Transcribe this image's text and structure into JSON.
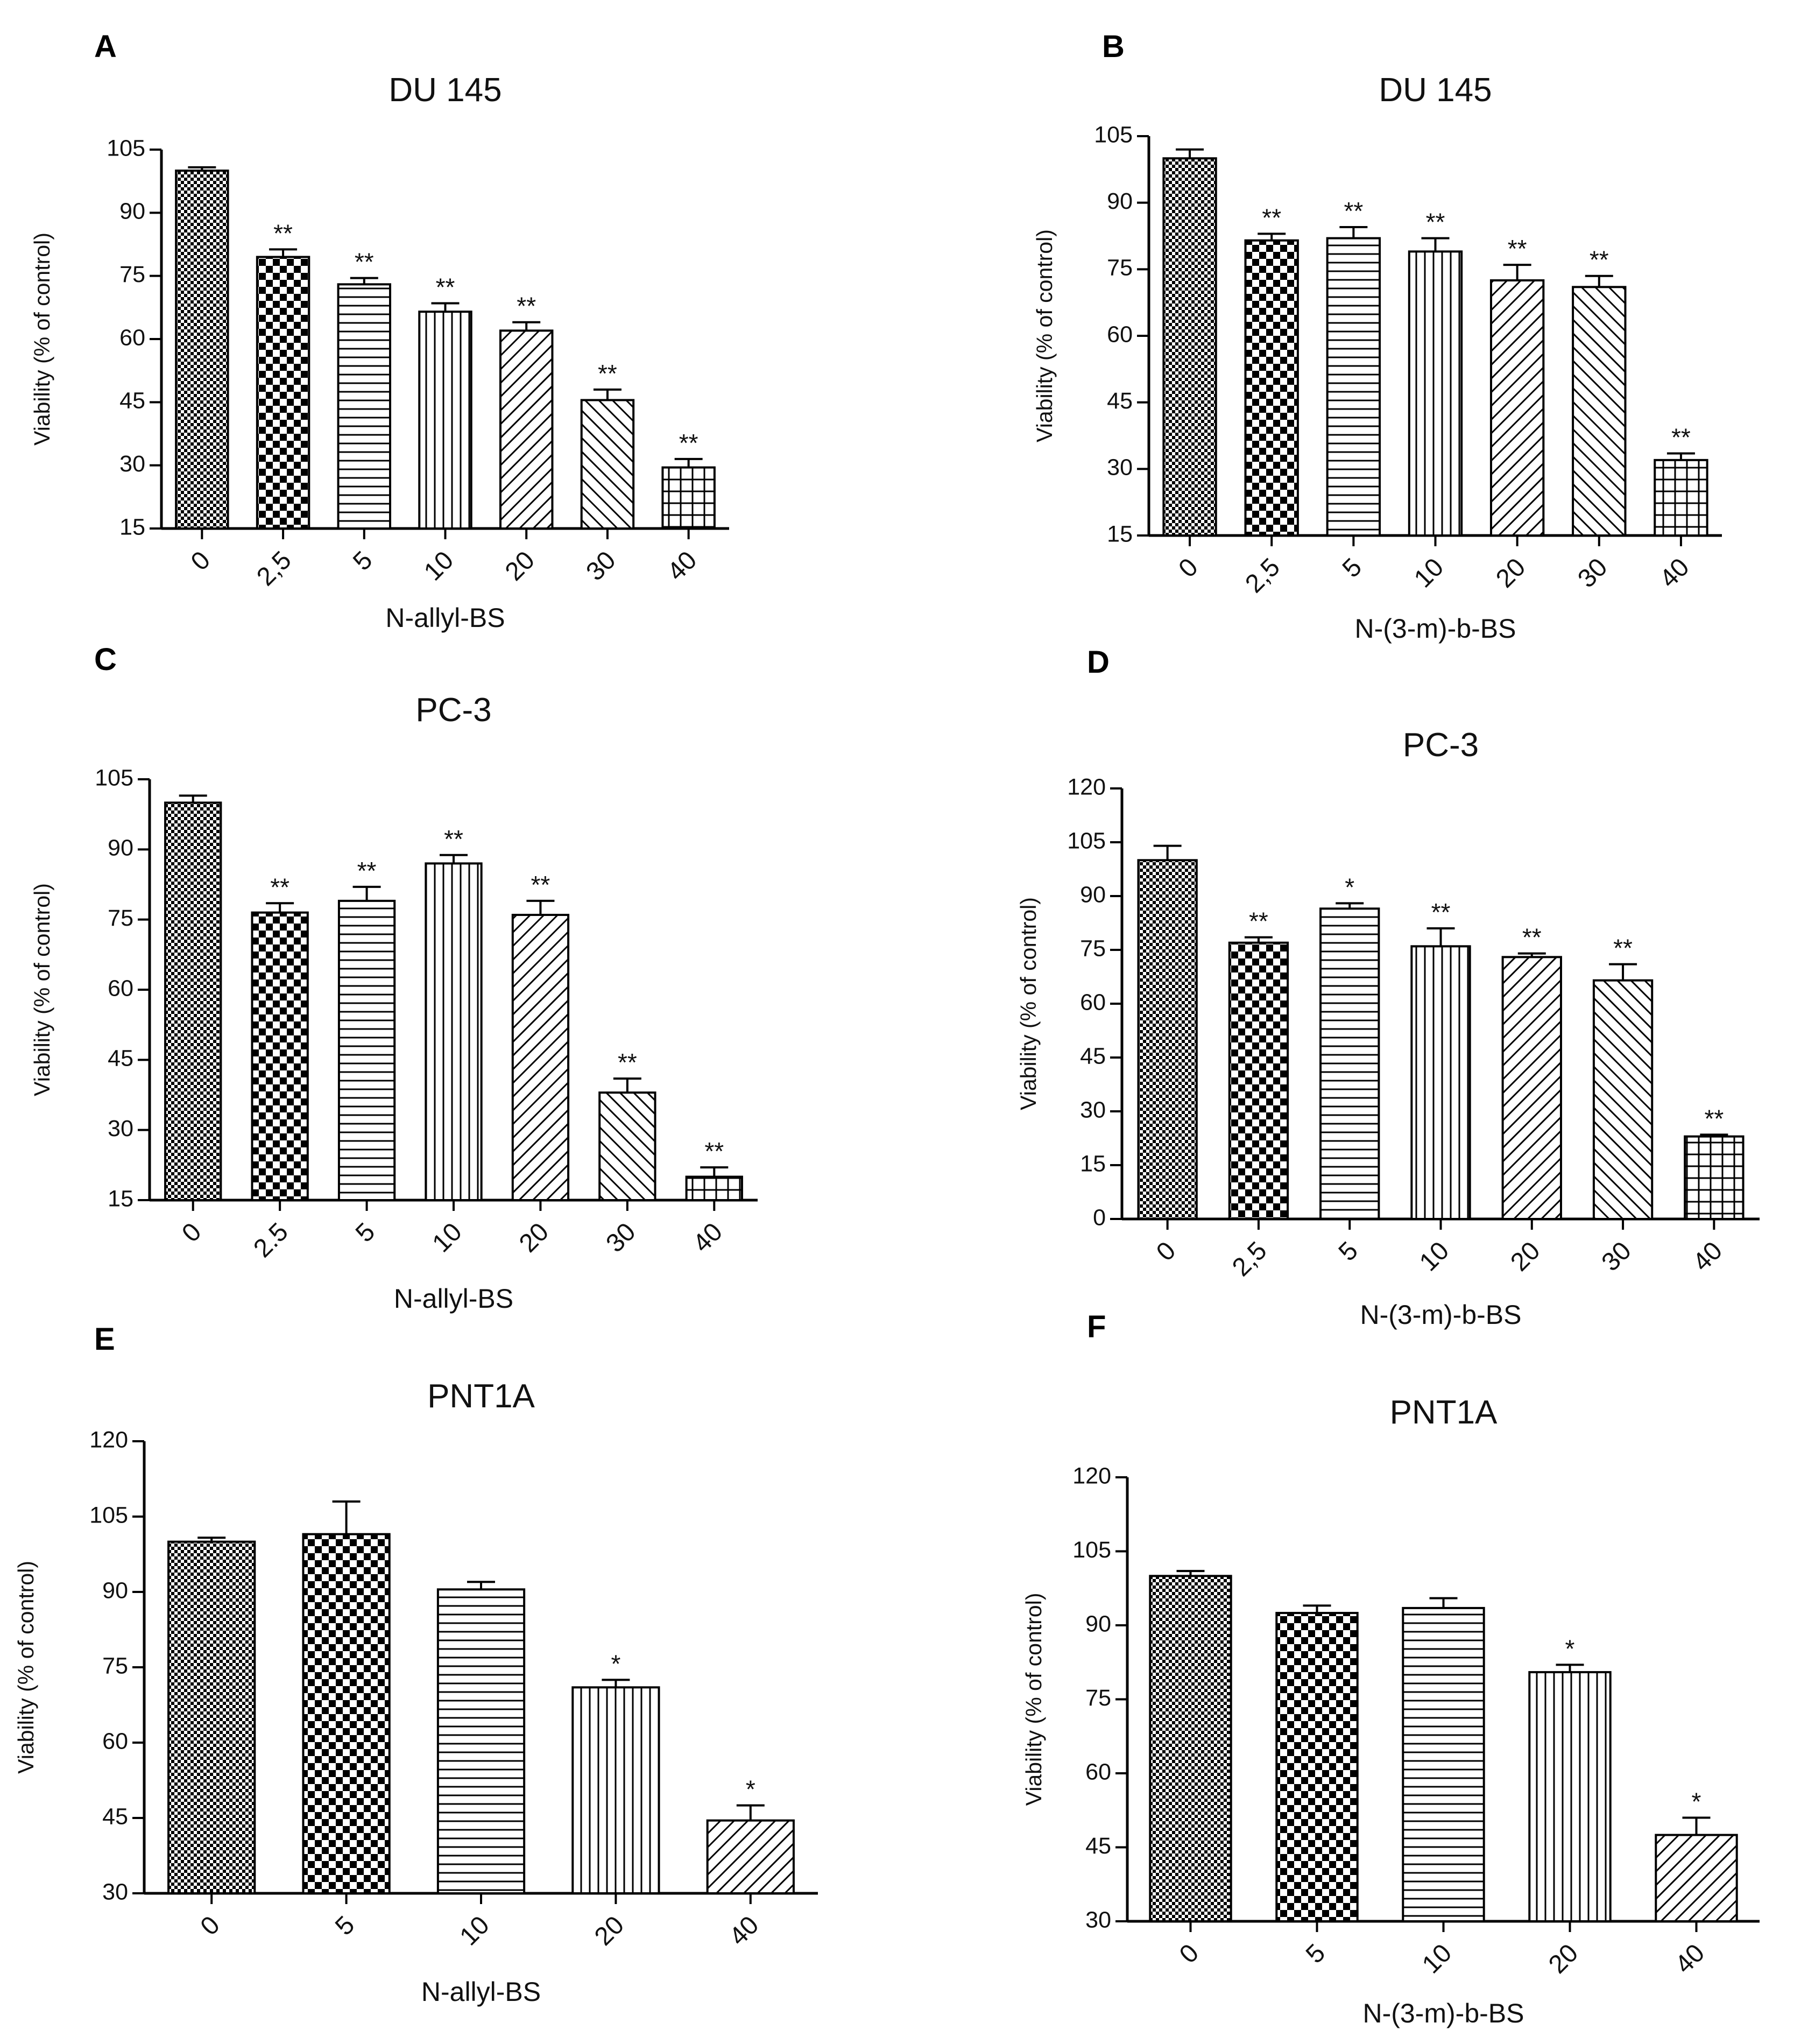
{
  "chart_data": [
    {
      "panel": "A",
      "type": "bar",
      "title": "DU 145",
      "xlabel": "N-allyl-BS",
      "ylabel": "Viability (% of control)",
      "categories": [
        "0",
        "2,5",
        "5",
        "10",
        "20",
        "30",
        "40"
      ],
      "values": [
        100,
        79.5,
        73,
        66.5,
        62,
        45.5,
        29.5
      ],
      "errors": [
        0.8,
        1.8,
        1.5,
        2.0,
        2.0,
        2.5,
        2.0
      ],
      "significance": [
        "",
        "**",
        "**",
        "**",
        "**",
        "**",
        "**"
      ],
      "patterns": [
        "fine-check",
        "checker",
        "hlines",
        "vlines",
        "diag-up",
        "diag-down",
        "grid"
      ],
      "ylim": [
        15,
        105
      ],
      "yticks": [
        15,
        30,
        45,
        60,
        75,
        90,
        105
      ]
    },
    {
      "panel": "B",
      "type": "bar",
      "title": "DU 145",
      "xlabel": "N-(3-m)-b-BS",
      "ylabel": "Viability (% of control)",
      "categories": [
        "0",
        "2,5",
        "5",
        "10",
        "20",
        "30",
        "40"
      ],
      "values": [
        100,
        81.5,
        82,
        79,
        72.5,
        71,
        32
      ],
      "errors": [
        2.0,
        1.5,
        2.5,
        3.0,
        3.5,
        2.5,
        1.5
      ],
      "significance": [
        "",
        "**",
        "**",
        "**",
        "**",
        "**",
        "**"
      ],
      "patterns": [
        "fine-check",
        "checker",
        "hlines",
        "vlines",
        "diag-up",
        "diag-down",
        "grid"
      ],
      "ylim": [
        15,
        105
      ],
      "yticks": [
        15,
        30,
        45,
        60,
        75,
        90,
        105
      ]
    },
    {
      "panel": "C",
      "type": "bar",
      "title": "PC-3",
      "xlabel": "N-allyl-BS",
      "ylabel": "Viability (% of control)",
      "categories": [
        "0",
        "2.5",
        "5",
        "10",
        "20",
        "30",
        "40"
      ],
      "values": [
        100,
        76.5,
        79,
        87,
        76,
        38,
        20
      ],
      "errors": [
        1.5,
        2.0,
        3.0,
        1.8,
        3.0,
        3.0,
        2.0
      ],
      "significance": [
        "",
        "**",
        "**",
        "**",
        "**",
        "**",
        "**"
      ],
      "patterns": [
        "fine-check",
        "checker",
        "hlines",
        "vlines",
        "diag-up",
        "diag-down",
        "grid"
      ],
      "ylim": [
        15,
        105
      ],
      "yticks": [
        15,
        30,
        45,
        60,
        75,
        90,
        105
      ]
    },
    {
      "panel": "D",
      "type": "bar",
      "title": "PC-3",
      "xlabel": "N-(3-m)-b-BS",
      "ylabel": "Viability (% of control)",
      "categories": [
        "0",
        "2,5",
        "5",
        "10",
        "20",
        "30",
        "40"
      ],
      "values": [
        100,
        77,
        86.5,
        76,
        73,
        66.5,
        23
      ],
      "errors": [
        4.0,
        1.5,
        1.5,
        5.0,
        1.0,
        4.5,
        0.5
      ],
      "significance": [
        "",
        "**",
        "*",
        "**",
        "**",
        "**",
        "**"
      ],
      "patterns": [
        "fine-check",
        "checker",
        "hlines",
        "vlines",
        "diag-up",
        "diag-down",
        "grid"
      ],
      "ylim": [
        0,
        120
      ],
      "yticks": [
        0,
        15,
        30,
        45,
        60,
        75,
        90,
        105,
        120
      ]
    },
    {
      "panel": "E",
      "type": "bar",
      "title": "PNT1A",
      "xlabel": "N-allyl-BS",
      "ylabel": "Viability (% of control)",
      "categories": [
        "0",
        "5",
        "10",
        "20",
        "40"
      ],
      "values": [
        100,
        101.5,
        90.5,
        71,
        44.5
      ],
      "errors": [
        0.8,
        6.5,
        1.5,
        1.5,
        3.0
      ],
      "significance": [
        "",
        "",
        "",
        "*",
        "*"
      ],
      "patterns": [
        "fine-check",
        "checker",
        "hlines",
        "vlines",
        "diag-up"
      ],
      "ylim": [
        30,
        120
      ],
      "yticks": [
        30,
        45,
        60,
        75,
        90,
        105,
        120
      ]
    },
    {
      "panel": "F",
      "type": "bar",
      "title": "PNT1A",
      "xlabel": "N-(3-m)-b-BS",
      "ylabel": "Viability (% of control)",
      "categories": [
        "0",
        "5",
        "10",
        "20",
        "40"
      ],
      "values": [
        100,
        92.5,
        93.5,
        80.5,
        47.5
      ],
      "errors": [
        1.0,
        1.5,
        2.0,
        1.5,
        3.5
      ],
      "significance": [
        "",
        "",
        "",
        "*",
        "*"
      ],
      "patterns": [
        "fine-check",
        "checker",
        "hlines",
        "vlines",
        "diag-up"
      ],
      "ylim": [
        30,
        120
      ],
      "yticks": [
        30,
        45,
        60,
        75,
        90,
        105,
        120
      ]
    }
  ]
}
